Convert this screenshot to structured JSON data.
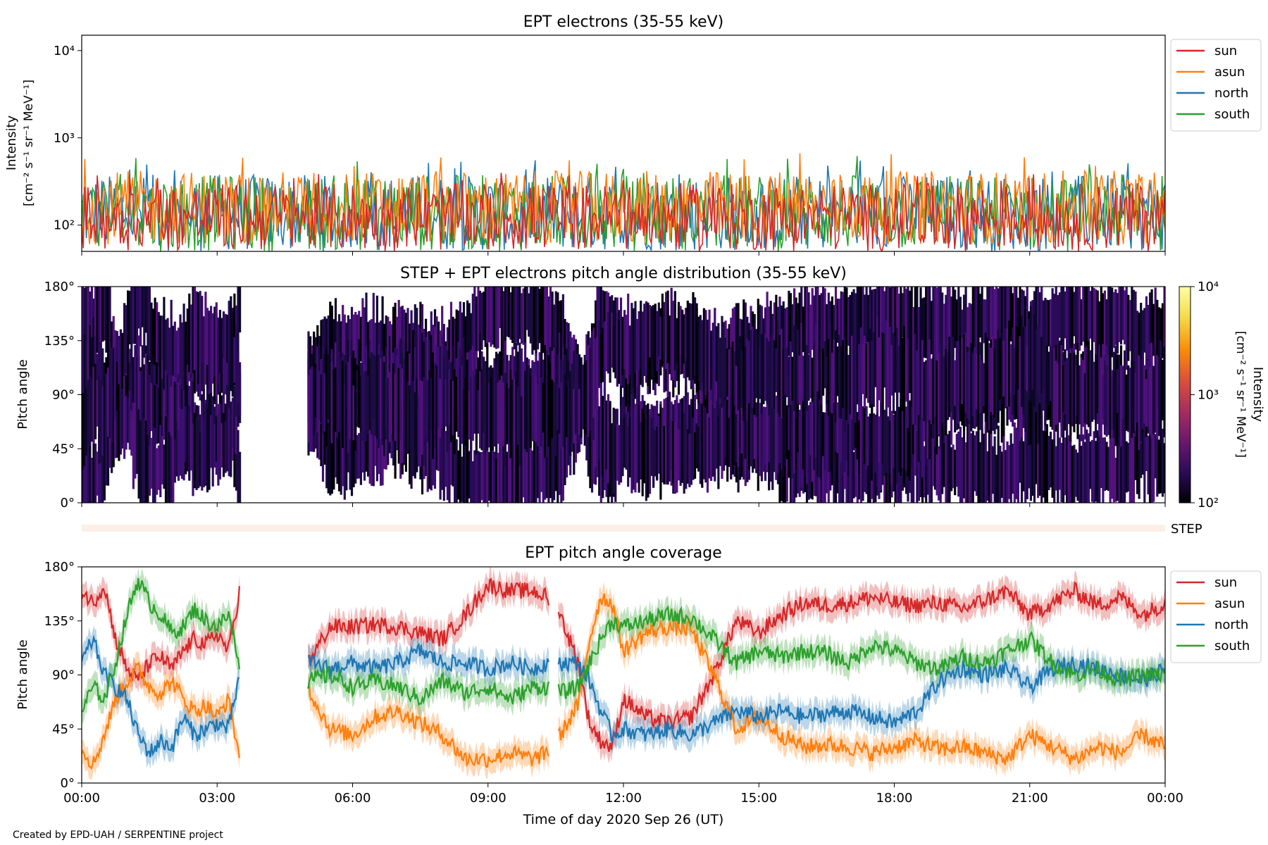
{
  "footer": {
    "credit": "Created by EPD-UAH / SERPENTINE project"
  },
  "chart_data": [
    {
      "type": "line",
      "title": "EPT electrons (35-55 keV)",
      "ylabel_line1": "Intensity",
      "ylabel_line2": "[cm⁻² s⁻¹ sr⁻¹ MeV⁻¹]",
      "yscale": "log",
      "ylim": [
        50,
        15000
      ],
      "yticks": [
        {
          "value": 100,
          "label": "10²"
        },
        {
          "value": 1000,
          "label": "10³"
        },
        {
          "value": 10000,
          "label": "10⁴"
        }
      ],
      "xlim_hours": [
        0,
        24
      ],
      "legend_position": "outside-right-top",
      "series": [
        {
          "name": "sun",
          "color": "#d62728",
          "typical_range": [
            50,
            300
          ],
          "peak": 400
        },
        {
          "name": "asun",
          "color": "#ff7f0e",
          "typical_range": [
            60,
            420
          ],
          "peak": 680
        },
        {
          "name": "north",
          "color": "#1f77b4",
          "typical_range": [
            50,
            380
          ],
          "peak": 560
        },
        {
          "name": "south",
          "color": "#2ca02c",
          "typical_range": [
            50,
            380
          ],
          "peak": 650
        }
      ]
    },
    {
      "type": "heatmap",
      "title": "STEP + EPT electrons pitch angle distribution (35-55 keV)",
      "ylabel": "Pitch angle",
      "ylim": [
        0,
        180
      ],
      "yticks": [
        {
          "value": 0,
          "label": "0°"
        },
        {
          "value": 45,
          "label": "45°"
        },
        {
          "value": 90,
          "label": "90°"
        },
        {
          "value": 135,
          "label": "135°"
        },
        {
          "value": 180,
          "label": "180°"
        }
      ],
      "data_gaps_hours": [
        [
          3.5,
          5.0
        ]
      ],
      "colorbar": {
        "label": "Intensity",
        "units": "[cm⁻² s⁻¹ sr⁻¹ MeV⁻¹]",
        "scale": "log",
        "range": [
          100,
          10000
        ],
        "ticks": [
          {
            "value": 100,
            "label": "10²"
          },
          {
            "value": 1000,
            "label": "10³"
          },
          {
            "value": 10000,
            "label": "10⁴"
          }
        ],
        "colors": [
          "#000004",
          "#2a0b57",
          "#6a176e",
          "#a52c60",
          "#dd513a",
          "#f98e09",
          "#f5db4b",
          "#fcffa4"
        ]
      },
      "step_strip_label": "STEP"
    },
    {
      "type": "line",
      "title": "EPT pitch angle coverage",
      "ylabel": "Pitch angle",
      "xlabel": "Time of day 2020 Sep 26 (UT)",
      "ylim": [
        0,
        180
      ],
      "yticks": [
        {
          "value": 0,
          "label": "0°"
        },
        {
          "value": 45,
          "label": "45°"
        },
        {
          "value": 90,
          "label": "90°"
        },
        {
          "value": 135,
          "label": "135°"
        },
        {
          "value": 180,
          "label": "180°"
        }
      ],
      "xlim_hours": [
        0,
        24
      ],
      "xticks": [
        {
          "value": 0,
          "label": "00:00"
        },
        {
          "value": 3,
          "label": "03:00"
        },
        {
          "value": 6,
          "label": "06:00"
        },
        {
          "value": 9,
          "label": "09:00"
        },
        {
          "value": 12,
          "label": "12:00"
        },
        {
          "value": 15,
          "label": "15:00"
        },
        {
          "value": 18,
          "label": "18:00"
        },
        {
          "value": 21,
          "label": "21:00"
        },
        {
          "value": 24,
          "label": "00:00"
        }
      ],
      "data_gaps_hours": [
        [
          3.5,
          5.0
        ],
        [
          10.35,
          10.55
        ]
      ],
      "legend_position": "outside-right-top",
      "series": [
        {
          "name": "sun",
          "color": "#d62728",
          "x": [
            0,
            0.25,
            0.5,
            0.75,
            1,
            1.25,
            1.5,
            1.75,
            2,
            2.25,
            2.5,
            2.75,
            3,
            3.25,
            3.5,
            5,
            5.5,
            6,
            6.5,
            7,
            7.5,
            8,
            8.5,
            9,
            9.5,
            10,
            10.3,
            10.6,
            11,
            11.25,
            11.5,
            11.75,
            12,
            12.5,
            13,
            13.5,
            14,
            14.5,
            15,
            15.5,
            16,
            16.5,
            17,
            17.5,
            18,
            18.5,
            19,
            19.5,
            20,
            20.5,
            21,
            21.5,
            22,
            22.5,
            23,
            23.5,
            24
          ],
          "y": [
            160,
            150,
            165,
            120,
            95,
            85,
            100,
            105,
            95,
            110,
            120,
            115,
            125,
            110,
            160,
            100,
            130,
            130,
            132,
            130,
            125,
            120,
            140,
            165,
            160,
            160,
            155,
            140,
            100,
            50,
            35,
            30,
            70,
            55,
            50,
            55,
            90,
            135,
            125,
            140,
            150,
            148,
            150,
            155,
            150,
            148,
            150,
            145,
            152,
            160,
            140,
            150,
            160,
            148,
            155,
            140,
            150
          ]
        },
        {
          "name": "asun",
          "color": "#ff7f0e",
          "x": [
            0,
            0.25,
            0.5,
            0.75,
            1,
            1.25,
            1.5,
            1.75,
            2,
            2.25,
            2.5,
            2.75,
            3,
            3.25,
            3.5,
            5,
            5.5,
            6,
            6.5,
            7,
            7.5,
            8,
            8.5,
            9,
            9.5,
            10,
            10.3,
            10.6,
            11,
            11.25,
            11.5,
            11.75,
            12,
            12.5,
            13,
            13.5,
            14,
            14.5,
            15,
            15.5,
            16,
            16.5,
            17,
            17.5,
            18,
            18.5,
            19,
            19.5,
            20,
            20.5,
            21,
            21.5,
            22,
            22.5,
            23,
            23.5,
            24
          ],
          "y": [
            30,
            15,
            40,
            70,
            85,
            95,
            80,
            75,
            85,
            70,
            60,
            65,
            55,
            70,
            20,
            80,
            45,
            40,
            55,
            60,
            50,
            40,
            20,
            20,
            25,
            20,
            25,
            40,
            65,
            120,
            155,
            150,
            110,
            125,
            130,
            128,
            90,
            45,
            55,
            40,
            30,
            32,
            30,
            25,
            30,
            35,
            28,
            30,
            25,
            20,
            40,
            30,
            20,
            30,
            25,
            40,
            30
          ]
        },
        {
          "name": "north",
          "color": "#1f77b4",
          "x": [
            0,
            0.25,
            0.5,
            0.75,
            1,
            1.25,
            1.5,
            1.75,
            2,
            2.25,
            2.5,
            2.75,
            3,
            3.25,
            3.5,
            5,
            5.5,
            6,
            6.5,
            7,
            7.5,
            8,
            8.5,
            9,
            9.5,
            10,
            10.3,
            10.6,
            11,
            11.25,
            11.5,
            11.75,
            12,
            12.5,
            13,
            13.5,
            14,
            14.5,
            15,
            15.5,
            16,
            16.5,
            17,
            17.5,
            18,
            18.5,
            19,
            19.5,
            20,
            20.5,
            21,
            21.5,
            22,
            22.5,
            23,
            23.5,
            24
          ],
          "y": [
            100,
            120,
            90,
            80,
            70,
            40,
            25,
            35,
            30,
            55,
            40,
            45,
            50,
            45,
            90,
            100,
            95,
            100,
            95,
            100,
            110,
            100,
            100,
            95,
            100,
            95,
            100,
            100,
            100,
            85,
            60,
            40,
            45,
            40,
            45,
            40,
            50,
            60,
            55,
            60,
            55,
            58,
            60,
            55,
            50,
            60,
            85,
            95,
            90,
            95,
            80,
            95,
            100,
            95,
            90,
            85,
            95
          ]
        },
        {
          "name": "south",
          "color": "#2ca02c",
          "x": [
            0,
            0.25,
            0.5,
            0.75,
            1,
            1.25,
            1.5,
            1.75,
            2,
            2.25,
            2.5,
            2.75,
            3,
            3.25,
            3.5,
            5,
            5.5,
            6,
            6.5,
            7,
            7.5,
            8,
            8.5,
            9,
            9.5,
            10,
            10.3,
            10.6,
            11,
            11.25,
            11.5,
            11.75,
            12,
            12.5,
            13,
            13.5,
            14,
            14.5,
            15,
            15.5,
            16,
            16.5,
            17,
            17.5,
            18,
            18.5,
            19,
            19.5,
            20,
            20.5,
            21,
            21.5,
            22,
            22.5,
            23,
            23.5,
            24
          ],
          "y": [
            60,
            80,
            70,
            100,
            140,
            170,
            150,
            140,
            125,
            130,
            145,
            135,
            130,
            140,
            100,
            85,
            90,
            80,
            85,
            80,
            70,
            85,
            75,
            80,
            70,
            80,
            80,
            75,
            80,
            100,
            120,
            135,
            130,
            135,
            140,
            138,
            120,
            100,
            110,
            105,
            110,
            108,
            100,
            115,
            110,
            100,
            95,
            105,
            100,
            110,
            120,
            100,
            90,
            95,
            85,
            90,
            90
          ]
        }
      ]
    }
  ]
}
